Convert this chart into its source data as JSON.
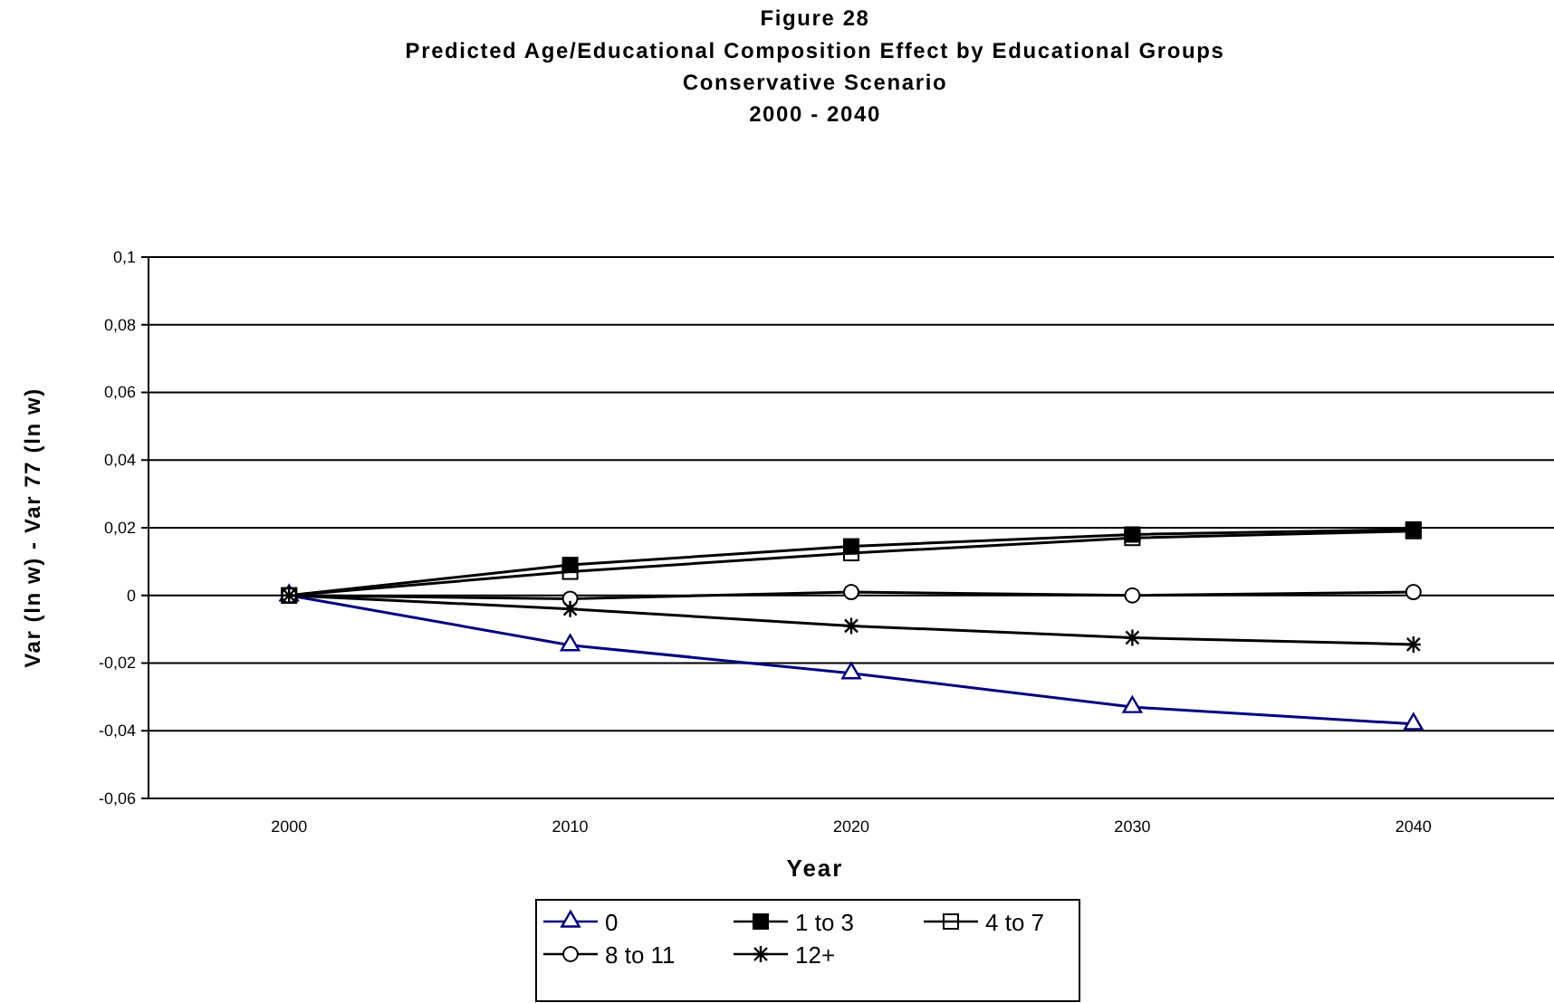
{
  "chart_data": {
    "type": "line",
    "title": "Figure 28",
    "subtitle": "Predicted Age/Educational Composition Effect by Educational Groups\nConservative Scenario\n2000 - 2040",
    "xlabel": "Year",
    "ylabel": "Var (ln w) - Var 77 (ln w)",
    "categories": [
      "2000",
      "2010",
      "2020",
      "2030",
      "2040"
    ],
    "series": [
      {
        "name": "0",
        "color": "#000080",
        "marker": "triangle",
        "values": [
          0,
          -0.0147,
          -0.023,
          -0.033,
          -0.038
        ]
      },
      {
        "name": "1 to 3",
        "color": "#000000",
        "marker": "square",
        "values": [
          0,
          0.009,
          0.0145,
          0.018,
          0.0195
        ]
      },
      {
        "name": "4 to 7",
        "color": "#000000",
        "marker": "square-open",
        "values": [
          0,
          0.007,
          0.0125,
          0.017,
          0.019
        ]
      },
      {
        "name": "8 to 11",
        "color": "#000000",
        "marker": "circle",
        "values": [
          0,
          -0.001,
          0.001,
          0,
          0.001
        ]
      },
      {
        "name": "12+",
        "color": "#000000",
        "marker": "cross",
        "values": [
          0,
          -0.004,
          -0.009,
          -0.0125,
          -0.0145
        ]
      }
    ],
    "ylim": [
      -0.06,
      0.1
    ],
    "yticks": [
      {
        "value": -0.06,
        "label": "-0,06"
      },
      {
        "value": -0.04,
        "label": "-0,04"
      },
      {
        "value": -0.02,
        "label": "-0,02"
      },
      {
        "value": 0,
        "label": "0"
      },
      {
        "value": 0.02,
        "label": "0,02"
      },
      {
        "value": 0.04,
        "label": "0,04"
      },
      {
        "value": 0.06,
        "label": "0,06"
      },
      {
        "value": 0.08,
        "label": "0,08"
      },
      {
        "value": 0.1,
        "label": "0,1"
      }
    ],
    "grid": "y",
    "legend": "bottom"
  }
}
